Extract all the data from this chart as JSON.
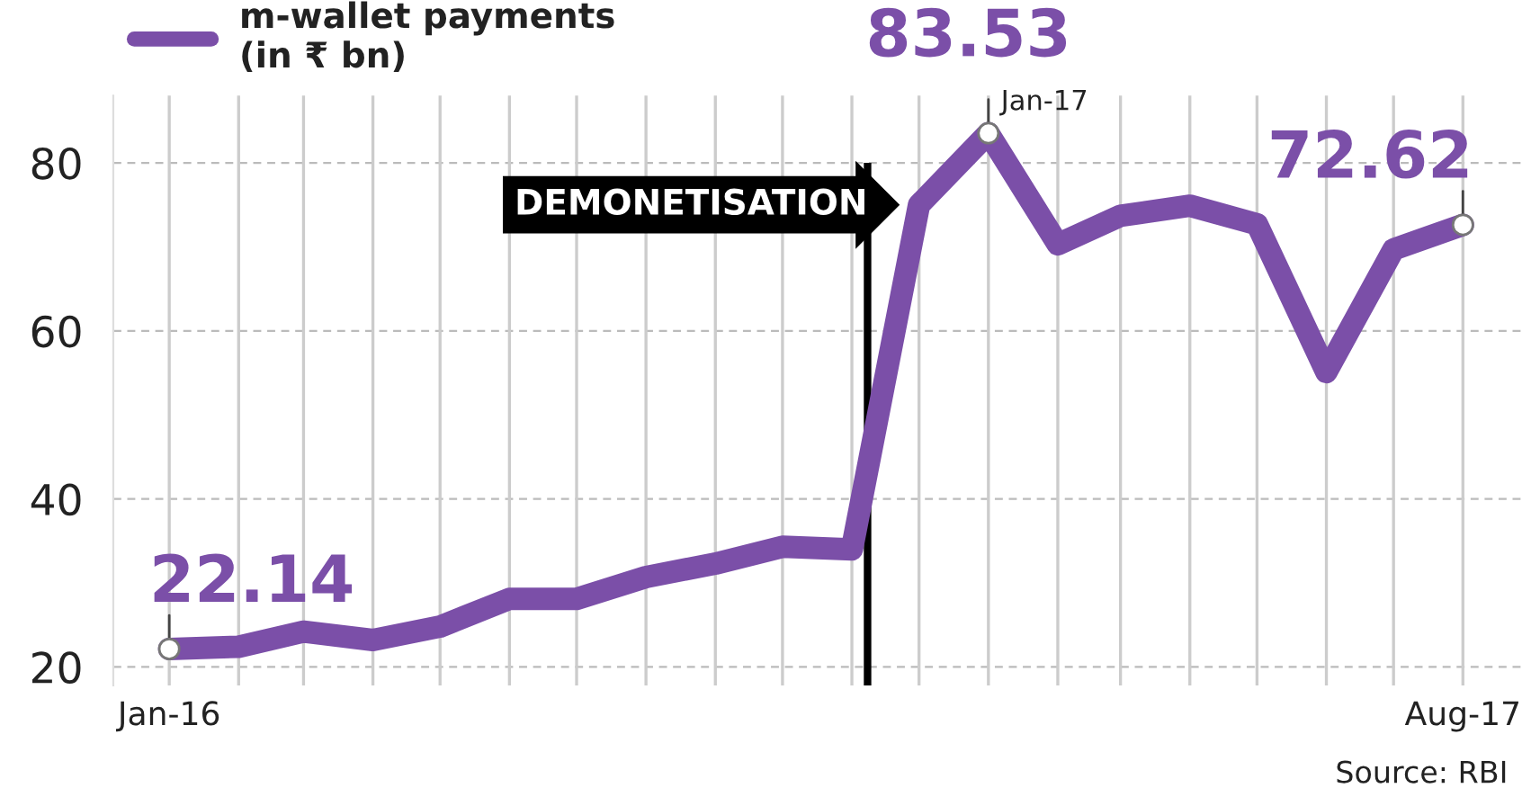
{
  "chart_data": {
    "type": "line",
    "x": [
      "2016-01",
      "2016-02",
      "2016-03",
      "2016-04",
      "2016-05",
      "2016-06",
      "2016-07",
      "2016-08",
      "2016-09",
      "2016-10",
      "2016-11",
      "2016-12",
      "2017-01",
      "2017-02",
      "2017-03",
      "2017-04",
      "2017-05",
      "2017-06",
      "2017-07",
      "2017-08"
    ],
    "series": [
      {
        "name": "m-wallet payments\n(in ₹ bn)",
        "color": "#7b4fa8",
        "values": [
          22.14,
          22.4,
          24.2,
          23.2,
          24.8,
          28.1,
          28.1,
          30.7,
          32.3,
          34.3,
          34.0,
          75.0,
          83.53,
          70.3,
          73.7,
          74.9,
          72.7,
          55.1,
          69.7,
          72.62
        ],
        "value_labels": [
          "22.14",
          null,
          null,
          null,
          null,
          null,
          null,
          null,
          null,
          null,
          null,
          null,
          "83.53",
          null,
          null,
          null,
          null,
          null,
          null,
          "72.62"
        ]
      }
    ],
    "xlim": [
      "2015-12-07",
      "2017-08-28"
    ],
    "xticks": [
      {
        "value": "2016-01",
        "label": "Jan-16"
      },
      {
        "value": "2016-02",
        "label": null
      },
      {
        "value": "2016-03",
        "label": null
      },
      {
        "value": "2016-04",
        "label": null
      },
      {
        "value": "2016-05",
        "label": null
      },
      {
        "value": "2016-06",
        "label": null
      },
      {
        "value": "2016-07",
        "label": null
      },
      {
        "value": "2016-08",
        "label": null
      },
      {
        "value": "2016-09",
        "label": null
      },
      {
        "value": "2016-10",
        "label": null
      },
      {
        "value": "2016-11",
        "label": null
      },
      {
        "value": "2016-12",
        "label": null
      },
      {
        "value": "2017-01",
        "label": null
      },
      {
        "value": "2017-02",
        "label": null
      },
      {
        "value": "2017-03",
        "label": null
      },
      {
        "value": "2017-04",
        "label": null
      },
      {
        "value": "2017-05",
        "label": null
      },
      {
        "value": "2017-06",
        "label": null
      },
      {
        "value": "2017-07",
        "label": null
      },
      {
        "value": "2017-08",
        "label": "Aug-17"
      }
    ],
    "ylim": [
      17.8,
      88
    ],
    "yticks": [
      20,
      40,
      60,
      80
    ],
    "grid": true,
    "legend": "top left",
    "ref_lines": [
      {
        "axis": "x",
        "value": "2016-11-08",
        "label": "DEMONETISATION",
        "color": "#000000"
      }
    ],
    "annotations": [
      {
        "text": "Jan-17",
        "x": "2017-01",
        "y": 83.53
      },
      "Source: RBI"
    ]
  }
}
